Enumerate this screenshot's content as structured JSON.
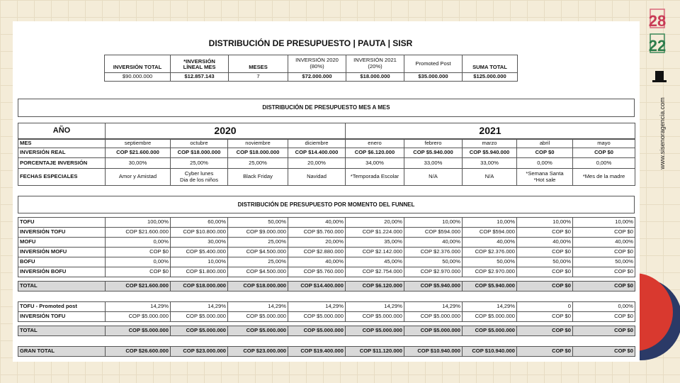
{
  "brand": {
    "logo_top": "28",
    "logo_bottom": "22",
    "url": "www.sisenoragencia.com"
  },
  "summary": {
    "title": "DISTRIBUCIÓN DE PRESUPUESTO | PAUTA | SISR",
    "headers": [
      "INVERSIÓN TOTAL",
      "*INVERSIÓN\nLÍNEAL MES",
      "MESES",
      "INVERSIÓN 2020\n(80%)",
      "INVERSIÓN 2021\n(20%)",
      "Promoted Post",
      "SUMA TOTAL"
    ],
    "values": [
      "$90.000.000",
      "$12.857.143",
      "7",
      "$72.000.000",
      "$18.000.000",
      "$35.000.000",
      "$125.000.000"
    ]
  },
  "monthly": {
    "title": "DISTRIBUCIÓN DE PRESUPUESTO MES A MES",
    "year_label": "AÑO",
    "years": [
      "2020",
      "2021"
    ],
    "rows": [
      {
        "label": "MES",
        "cells": [
          "septiembre",
          "octubre",
          "noviembre",
          "diciembre",
          "enero",
          "febrero",
          "marzo",
          "abril",
          "mayo"
        ]
      },
      {
        "label": "INVERSIÓN REAL",
        "cells": [
          "COP $21.600.000",
          "COP $18.000.000",
          "COP $18.000.000",
          "COP $14.400.000",
          "COP $6.120.000",
          "COP $5.940.000",
          "COP $5.940.000",
          "COP $0",
          "COP $0"
        ]
      },
      {
        "label": "PORCENTAJE INVERSIÓN",
        "cells": [
          "30,00%",
          "25,00%",
          "25,00%",
          "20,00%",
          "34,00%",
          "33,00%",
          "33,00%",
          "0,00%",
          "0,00%"
        ]
      },
      {
        "label": "FECHAS ESPECIALES",
        "cells": [
          "Amor y Amistad",
          "Cyber lunes\nDia de los niños",
          "Black Friday",
          "Navidad",
          "*Temporada Escolar",
          "N/A",
          "N/A",
          "*Semana Santa\n*Hot sale",
          "*Mes de la madre"
        ]
      }
    ]
  },
  "funnel": {
    "title": "DISTRIBUCIÓN DE PRESUPUESTO POR MOMENTO DEL FUNNEL",
    "rows": [
      {
        "label": "TOFU",
        "cells": [
          "100,00%",
          "60,00%",
          "50,00%",
          "40,00%",
          "20,00%",
          "10,00%",
          "10,00%",
          "10,00%",
          "10,00%"
        ]
      },
      {
        "label": "INVERSIÓN TOFU",
        "cells": [
          "COP $21.600.000",
          "COP $10.800.000",
          "COP $9.000.000",
          "COP $5.760.000",
          "COP $1.224.000",
          "COP $594.000",
          "COP $594.000",
          "COP $0",
          "COP $0"
        ]
      },
      {
        "label": "MOFU",
        "cells": [
          "0,00%",
          "30,00%",
          "25,00%",
          "20,00%",
          "35,00%",
          "40,00%",
          "40,00%",
          "40,00%",
          "40,00%"
        ]
      },
      {
        "label": "INVERSIÓN MOFU",
        "cells": [
          "COP $0",
          "COP $5.400.000",
          "COP $4.500.000",
          "COP $2.880.000",
          "COP $2.142.000",
          "COP $2.376.000",
          "COP $2.376.000",
          "COP $0",
          "COP $0"
        ]
      },
      {
        "label": "BOFU",
        "cells": [
          "0,00%",
          "10,00%",
          "25,00%",
          "40,00%",
          "45,00%",
          "50,00%",
          "50,00%",
          "50,00%",
          "50,00%"
        ]
      },
      {
        "label": "INVERSIÓN BOFU",
        "cells": [
          "COP $0",
          "COP $1.800.000",
          "COP $4.500.000",
          "COP $5.760.000",
          "COP $2.754.000",
          "COP $2.970.000",
          "COP $2.970.000",
          "COP $0",
          "COP $0"
        ]
      },
      {
        "label": "TOTAL",
        "cells": [
          "COP $21.600.000",
          "COP $18.000.000",
          "COP $18.000.000",
          "COP $14.400.000",
          "COP $6.120.000",
          "COP $5.940.000",
          "COP $5.940.000",
          "COP $0",
          "COP $0"
        ]
      },
      {
        "label": "TOFU - Promoted post",
        "cells": [
          "14,29%",
          "14,29%",
          "14,29%",
          "14,29%",
          "14,29%",
          "14,29%",
          "14,29%",
          "0",
          "0,00%"
        ]
      },
      {
        "label": "INVERSIÓN TOFU",
        "cells": [
          "COP $5.000.000",
          "COP $5.000.000",
          "COP $5.000.000",
          "COP $5.000.000",
          "COP $5.000.000",
          "COP $5.000.000",
          "COP $5.000.000",
          "COP $0",
          "COP $0"
        ]
      },
      {
        "label": "TOTAL",
        "cells": [
          "COP $5.000.000",
          "COP $5.000.000",
          "COP $5.000.000",
          "COP $5.000.000",
          "COP $5.000.000",
          "COP $5.000.000",
          "COP $5.000.000",
          "COP $0",
          "COP $0"
        ]
      },
      {
        "label": "GRAN TOTAL",
        "cells": [
          "COP $26.600.000",
          "COP $23.000.000",
          "COP $23.000.000",
          "COP $19.400.000",
          "COP $11.120.000",
          "COP $10.940.000",
          "COP $10.940.000",
          "COP $0",
          "COP $0"
        ]
      }
    ]
  }
}
